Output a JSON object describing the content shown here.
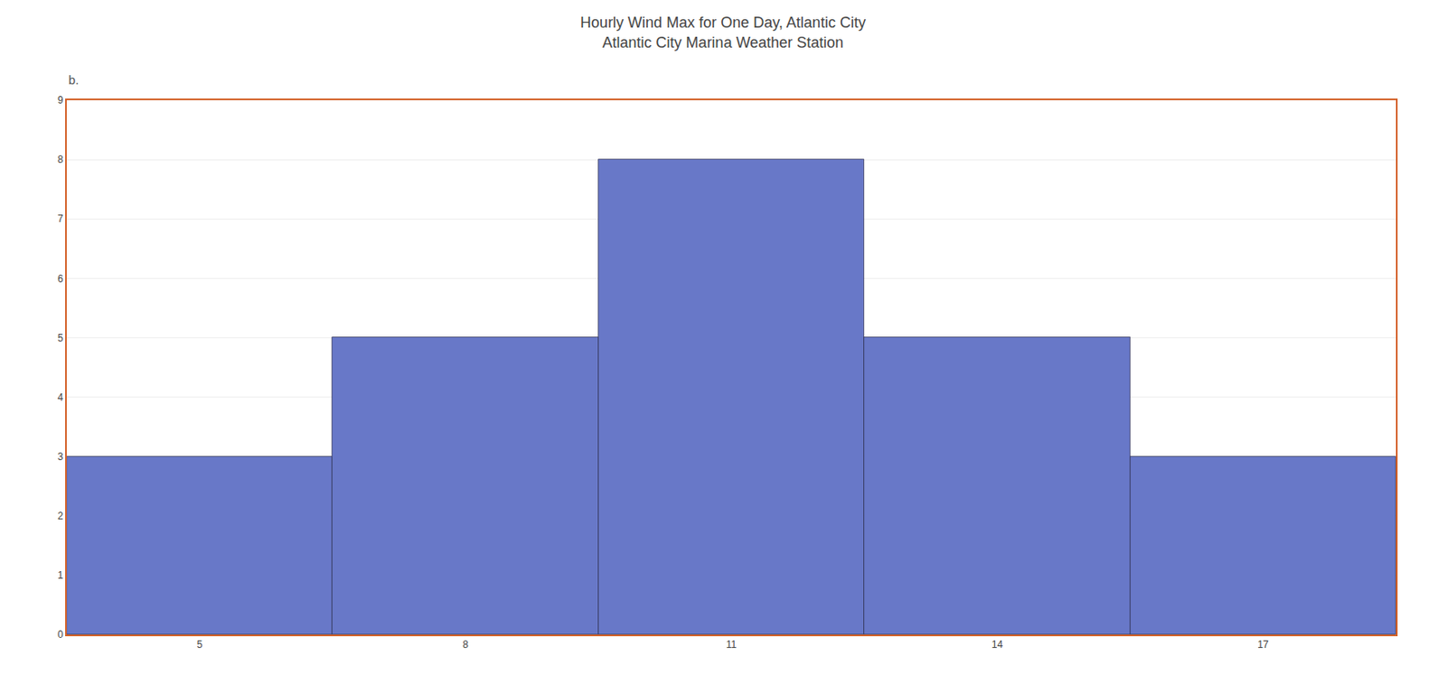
{
  "chart_data": {
    "type": "bar",
    "title": "Hourly Wind Max for One Day, Atlantic City",
    "subtitle": "Atlantic City Marina Weather Station",
    "annotations": [
      "b."
    ],
    "x": [
      5,
      8,
      11,
      14,
      17
    ],
    "values": [
      3,
      5,
      8,
      5,
      3
    ],
    "color": "#6878c8",
    "xlim": [
      3.5,
      18.5
    ],
    "xticks": [
      5,
      8,
      11,
      14,
      17
    ],
    "ylim": [
      0,
      9
    ],
    "yticks": [
      0,
      1,
      2,
      3,
      4,
      5,
      6,
      7,
      8,
      9
    ],
    "grid": true
  }
}
